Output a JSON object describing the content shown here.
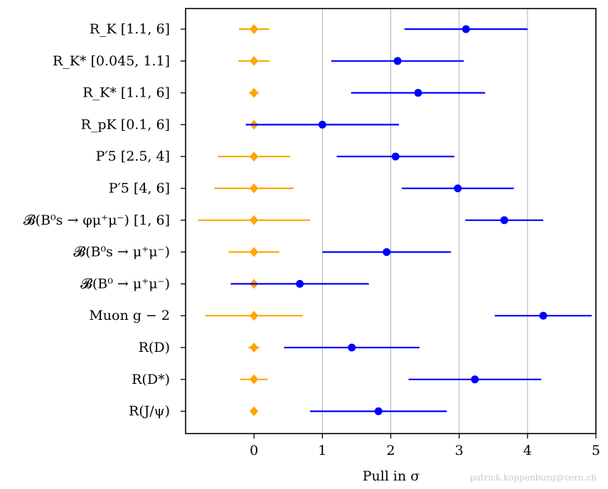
{
  "chart_data": {
    "type": "scatter",
    "xlabel": "Pull in σ",
    "xlim": [
      -1,
      5
    ],
    "xticks": [
      "0",
      "1",
      "2",
      "3",
      "4",
      "5"
    ],
    "grid": "vertical at 1, 2, 3, 4",
    "credit": "patrick.koppenburg@cern.ch",
    "categories": [
      "R_K [1.1, 6]",
      "R_K* [0.045, 1.1]",
      "R_K* [1.1, 6]",
      "R_pK [0.1, 6]",
      "P′5 [2.5, 4]",
      "P′5 [4, 6]",
      "𝓑(B⁰s → φμ⁺μ⁻) [1, 6]",
      "𝓑(B⁰s → μ⁺μ⁻)",
      "𝓑(B⁰ → μ⁺μ⁻)",
      "Muon g − 2",
      "R(D)",
      "R(D*)",
      "R(J/ψ)"
    ],
    "series": [
      {
        "color": "#ffa500",
        "marker": "diamond",
        "values": [
          0,
          0,
          0,
          0,
          0,
          0,
          0,
          0,
          0,
          0,
          0,
          0,
          0
        ],
        "err": [
          0.22,
          0.23,
          0.07,
          0.0,
          0.53,
          0.58,
          0.82,
          0.37,
          0.05,
          0.71,
          0.08,
          0.2,
          0.0
        ]
      },
      {
        "color": "#0000ff",
        "marker": "circle",
        "values": [
          3.1,
          2.1,
          2.4,
          1.0,
          2.07,
          2.98,
          3.66,
          1.94,
          0.67,
          4.23,
          1.43,
          3.23,
          1.82
        ],
        "err": [
          0.9,
          0.97,
          0.98,
          1.12,
          0.86,
          0.82,
          0.57,
          0.94,
          1.01,
          0.71,
          0.99,
          0.97,
          1.0
        ]
      }
    ]
  }
}
